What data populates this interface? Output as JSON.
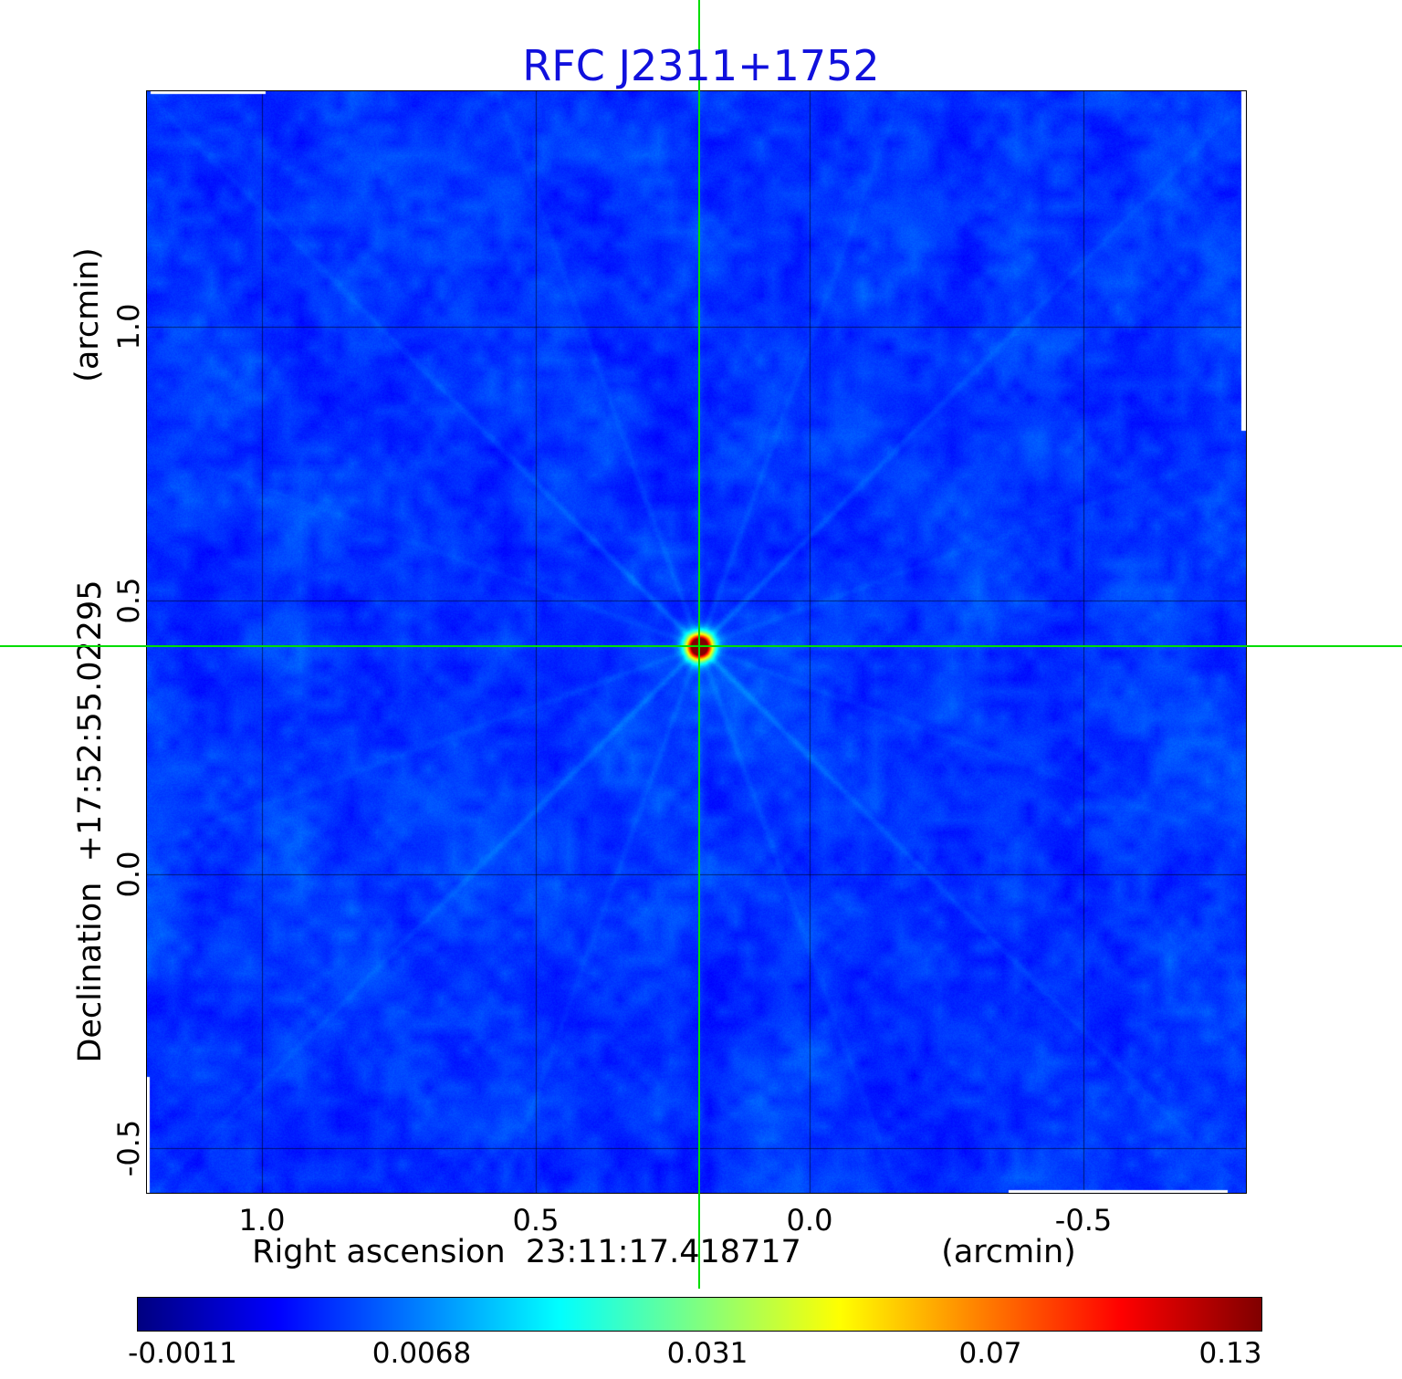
{
  "title": "RFC J2311+1752",
  "colors": {
    "title": "#1010dd",
    "crosshair": "#00dd00"
  },
  "axes": {
    "y_unit": "(arcmin)",
    "y_label": "Declination  +17:52:55.02295",
    "x_label": "Right ascension  23:11:17.418717",
    "x_unit": "(arcmin)"
  },
  "chart_data": {
    "type": "heatmap",
    "title": "RFC J2311+1752",
    "xlabel": "Right ascension 23:11:17.418717 (arcmin)",
    "ylabel": "Declination +17:52:55.02295 (arcmin)",
    "x_ticks": [
      "1.0",
      "0.5",
      "0.0",
      "-0.5"
    ],
    "y_ticks": [
      "1.0",
      "0.5",
      "0.0",
      "-0.5"
    ],
    "x_range_arcmin": [
      1.21,
      -0.8
    ],
    "y_range_arcmin": [
      -0.58,
      1.43
    ],
    "grid": true,
    "colormap": "jet",
    "source": {
      "name": "RFC J2311+1752",
      "ra": "23:11:17.418717",
      "dec": "+17:52:55.02295",
      "peak_offset_arcmin": {
        "ra": 0.2,
        "dec": 0.42
      }
    },
    "crosshair": {
      "x_arcmin": 0.2,
      "y_arcmin": 0.42
    },
    "colorbar": {
      "ticks": [
        "-0.0011",
        "0.0068",
        "0.031",
        "0.07",
        "0.13"
      ],
      "min": -0.0011,
      "max": 0.13,
      "orientation": "horizontal"
    }
  }
}
